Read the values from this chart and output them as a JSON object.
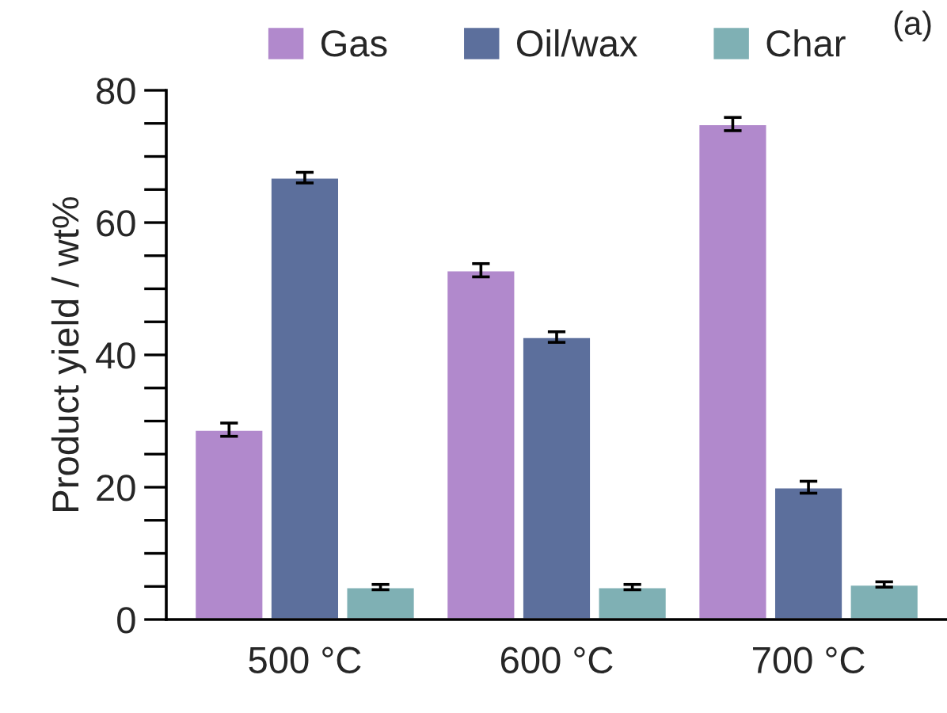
{
  "chart_data": {
    "type": "bar",
    "ylabel": "Product yield / wt%",
    "categories": [
      "500 °C",
      "600 °C",
      "700 °C"
    ],
    "series": [
      {
        "name": "Gas",
        "color": "#b189cc",
        "values": [
          28.7,
          52.8,
          74.9
        ],
        "errors": [
          1.0,
          1.0,
          1.0
        ]
      },
      {
        "name": "Oil/wax",
        "color": "#5c6f9c",
        "values": [
          66.8,
          42.7,
          20.0
        ],
        "errors": [
          0.8,
          0.8,
          0.9
        ]
      },
      {
        "name": "Char",
        "color": "#7fb0b4",
        "values": [
          4.9,
          4.9,
          5.3
        ],
        "errors": [
          0.4,
          0.4,
          0.4
        ]
      }
    ],
    "ylim": [
      0,
      80
    ],
    "yticks": [
      0,
      {
        "value": 5,
        "label": null
      },
      {
        "value": 10,
        "label": null
      },
      {
        "value": 15,
        "label": null
      },
      20,
      {
        "value": 25,
        "label": null
      },
      {
        "value": 30,
        "label": null
      },
      {
        "value": 35,
        "label": null
      },
      40,
      {
        "value": 45,
        "label": null
      },
      {
        "value": 50,
        "label": null
      },
      {
        "value": 55,
        "label": null
      },
      60,
      {
        "value": 65,
        "label": null
      },
      {
        "value": 70,
        "label": null
      },
      {
        "value": 75,
        "label": null
      },
      80
    ],
    "annotations": [
      "(a)"
    ],
    "legend": "top",
    "grid": false
  }
}
